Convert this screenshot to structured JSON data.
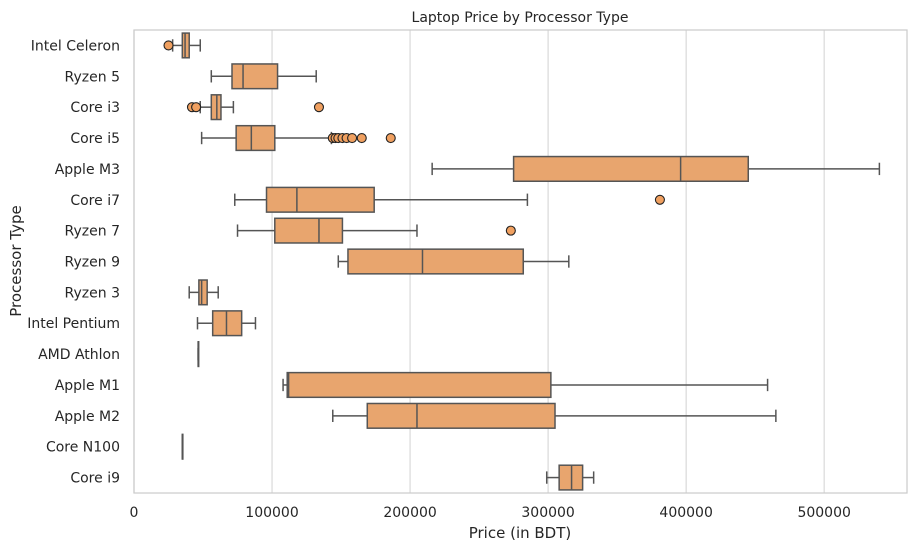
{
  "chart_data": {
    "type": "boxplot",
    "orientation": "horizontal",
    "title": "Laptop Price by Processor Type",
    "xlabel": "Price (in BDT)",
    "ylabel": "Processor Type",
    "xlim": [
      0,
      560000
    ],
    "xticks": [
      0,
      100000,
      200000,
      300000,
      400000,
      500000
    ],
    "xtick_labels": [
      "0",
      "100000",
      "200000",
      "300000",
      "400000",
      "500000"
    ],
    "grid": "vertical",
    "colors": {
      "box": "#e8a56e",
      "edge": "#555555",
      "flier": "#f0a060",
      "grid": "#d9d9d9"
    },
    "categories": [
      "Intel Celeron",
      "Ryzen 5",
      "Core i3",
      "Core i5",
      "Apple M3",
      "Core i7",
      "Ryzen 7",
      "Ryzen 9",
      "Ryzen 3",
      "Intel Pentium",
      "AMD Athlon",
      "Apple M1",
      "Apple M2",
      "Core N100",
      "Core i9"
    ],
    "boxes": [
      {
        "label": "Intel Celeron",
        "whislo": 28000,
        "q1": 35000,
        "med": 37000,
        "q3": 40000,
        "whishi": 48000,
        "fliers": [
          25000
        ]
      },
      {
        "label": "Ryzen 5",
        "whislo": 56000,
        "q1": 71000,
        "med": 79000,
        "q3": 104000,
        "whishi": 132000,
        "fliers": []
      },
      {
        "label": "Core i3",
        "whislo": 48000,
        "q1": 56000,
        "med": 60000,
        "q3": 63000,
        "whishi": 72000,
        "fliers": [
          42000,
          45000,
          134000
        ]
      },
      {
        "label": "Core i5",
        "whislo": 49000,
        "q1": 74000,
        "med": 85000,
        "q3": 102000,
        "whishi": 143000,
        "fliers": [
          144000,
          146000,
          148000,
          151000,
          154000,
          158000,
          165000,
          186000
        ]
      },
      {
        "label": "Apple M3",
        "whislo": 216000,
        "q1": 275000,
        "med": 396000,
        "q3": 445000,
        "whishi": 540000,
        "fliers": []
      },
      {
        "label": "Core i7",
        "whislo": 73000,
        "q1": 96000,
        "med": 118000,
        "q3": 174000,
        "whishi": 285000,
        "fliers": [
          381000
        ]
      },
      {
        "label": "Ryzen 7",
        "whislo": 75000,
        "q1": 102000,
        "med": 134000,
        "q3": 151000,
        "whishi": 205000,
        "fliers": [
          273000
        ]
      },
      {
        "label": "Ryzen 9",
        "whislo": 148000,
        "q1": 155000,
        "med": 209000,
        "q3": 282000,
        "whishi": 315000,
        "fliers": []
      },
      {
        "label": "Ryzen 3",
        "whislo": 40000,
        "q1": 47000,
        "med": 49000,
        "q3": 53000,
        "whishi": 61000,
        "fliers": []
      },
      {
        "label": "Intel Pentium",
        "whislo": 46000,
        "q1": 57000,
        "med": 67000,
        "q3": 78000,
        "whishi": 88000,
        "fliers": []
      },
      {
        "label": "AMD Athlon",
        "whislo": 46500,
        "q1": 46500,
        "med": 46500,
        "q3": 46500,
        "whishi": 46500,
        "fliers": []
      },
      {
        "label": "Apple M1",
        "whislo": 108000,
        "q1": 111000,
        "med": 112000,
        "q3": 302000,
        "whishi": 459000,
        "fliers": []
      },
      {
        "label": "Apple M2",
        "whislo": 144000,
        "q1": 169000,
        "med": 205000,
        "q3": 305000,
        "whishi": 465000,
        "fliers": []
      },
      {
        "label": "Core N100",
        "whislo": 35000,
        "q1": 35000,
        "med": 35000,
        "q3": 35000,
        "whishi": 35000,
        "fliers": []
      },
      {
        "label": "Core i9",
        "whislo": 299000,
        "q1": 308000,
        "med": 317000,
        "q3": 325000,
        "whishi": 333000,
        "fliers": []
      }
    ]
  }
}
